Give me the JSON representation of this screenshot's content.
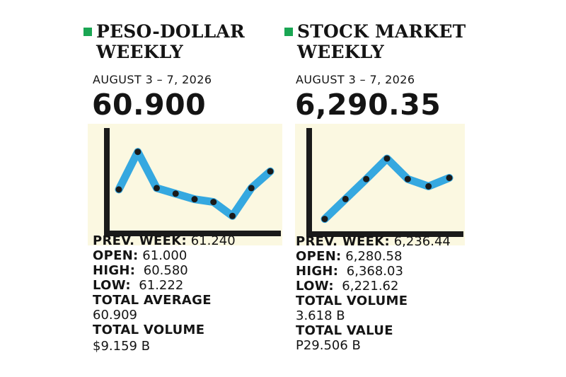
{
  "colors": {
    "accent_green": "#1aa653",
    "line_blue": "#35a8e0",
    "chart_bg": "#fbf8e1",
    "dark": "#1a1a1a"
  },
  "left": {
    "title_line1": "PESO-DOLLAR",
    "title_line2": "WEEKLY",
    "date": "AUGUST 3 – 7, 2026",
    "value": "60.900",
    "stats": {
      "prev_label": "PREV. WEEK:",
      "prev_value": "61.240",
      "open_label": "OPEN:",
      "open_value": "61.000",
      "high_label": "HIGH:",
      "high_value": "60.580",
      "low_label": "LOW:",
      "low_value": "61.222",
      "avg_label": "TOTAL AVERAGE",
      "avg_value": "60.909",
      "vol_label": "TOTAL VOLUME",
      "vol_value": "$9.159 B"
    }
  },
  "right": {
    "title_line1": "STOCK MARKET",
    "title_line2": "WEEKLY",
    "date": "AUGUST 3 – 7, 2026",
    "value": "6,290.35",
    "stats": {
      "prev_label": "PREV. WEEK:",
      "prev_value": "6,236.44",
      "open_label": "OPEN:",
      "open_value": "6,280.58",
      "high_label": "HIGH:",
      "high_value": "6,368.03",
      "low_label": "LOW:",
      "low_value": "6,221.62",
      "vol_label": "TOTAL VOLUME",
      "vol_value": "3.618 B",
      "val_label": "TOTAL VALUE",
      "val_value": "P29.506 B"
    }
  },
  "chart_data": [
    {
      "type": "line",
      "y": [
        61.05,
        61.32,
        61.06,
        61.02,
        60.98,
        60.96,
        60.86,
        61.06,
        61.18
      ],
      "ylim": [
        60.76,
        61.42
      ]
    },
    {
      "type": "line",
      "y": [
        6222,
        6255,
        6288,
        6322,
        6288,
        6276,
        6290
      ],
      "ylim": [
        6204,
        6356
      ]
    }
  ]
}
